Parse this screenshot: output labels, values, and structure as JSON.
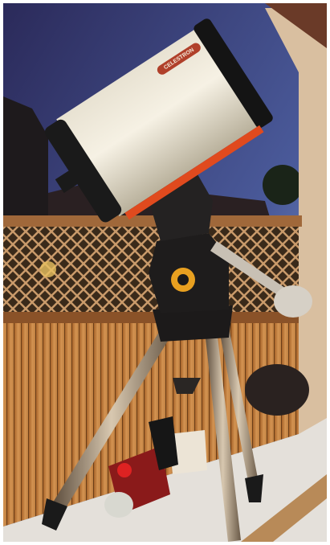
{
  "tube_label": "CELESTRON"
}
